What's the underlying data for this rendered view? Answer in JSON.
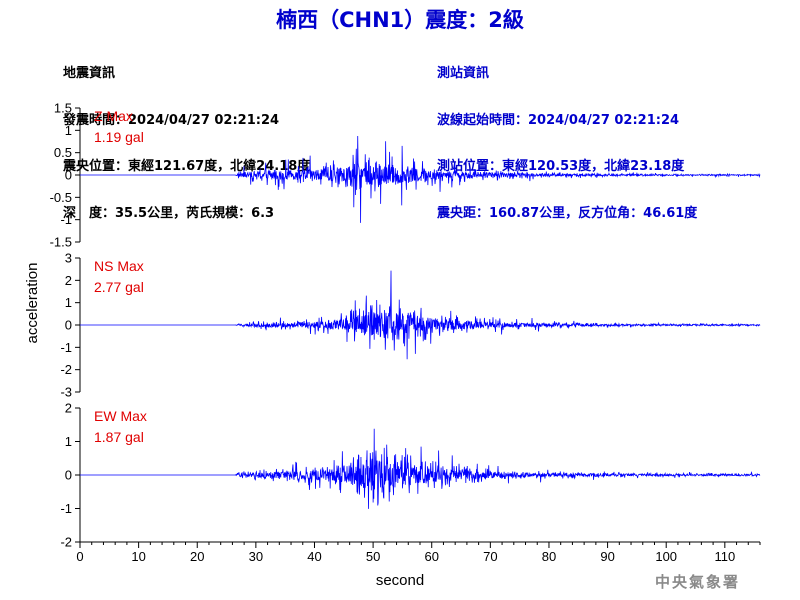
{
  "header": {
    "title": "楠西（CHN1）震度：2級"
  },
  "quake_info": {
    "heading": "地震資訊",
    "origin_time": "發震時間：2024/04/27 02:21:24",
    "epicenter": "震央位置：東經121.67度，北緯24.18度",
    "depth_magnitude": "深　度：35.5公里，芮氏規模：6.3"
  },
  "station_info": {
    "heading": "測站資訊",
    "wave_start": "波線起始時間：2024/04/27 02:21:24",
    "location": "測站位置：東經120.53度，北緯23.18度",
    "distance": "震央距：160.87公里，反方位角：46.61度"
  },
  "watermark": "中央氣象署",
  "colors": {
    "title": "#0000cc",
    "station_info": "#0000cc",
    "trace": "#0000ff",
    "max_label": "#e00000",
    "axis": "#000000"
  },
  "chart_data": {
    "type": "line",
    "xlabel": "second",
    "ylabel": "acceleration",
    "xlim": [
      0,
      116
    ],
    "x_ticks": [
      0,
      10,
      20,
      30,
      40,
      50,
      60,
      70,
      80,
      90,
      100,
      110
    ],
    "panels": [
      {
        "component": "Z",
        "max_label": "Z Max",
        "max_value": "1.19 gal",
        "ylim": [
          -1.5,
          1.5
        ],
        "y_ticks": [
          1.5,
          1,
          0.5,
          0,
          -0.5,
          -1,
          -1.5
        ],
        "y_tick_labels": [
          "1.5",
          "1",
          "0.5",
          "0",
          "-0.5",
          "-1",
          "-1.5"
        ],
        "envelope": [
          [
            0,
            0
          ],
          [
            26.5,
            0
          ],
          [
            27,
            0.15
          ],
          [
            30,
            0.3
          ],
          [
            35,
            0.35
          ],
          [
            40,
            0.45
          ],
          [
            45,
            0.6
          ],
          [
            47.5,
            1.15
          ],
          [
            50,
            0.95
          ],
          [
            53,
            0.85
          ],
          [
            56,
            0.6
          ],
          [
            60,
            0.45
          ],
          [
            65,
            0.3
          ],
          [
            70,
            0.22
          ],
          [
            80,
            0.1
          ],
          [
            90,
            0.07
          ],
          [
            100,
            0.05
          ],
          [
            110,
            0.04
          ],
          [
            116,
            0.04
          ]
        ]
      },
      {
        "component": "NS",
        "max_label": "NS Max",
        "max_value": "2.77 gal",
        "ylim": [
          -3,
          3
        ],
        "y_ticks": [
          3,
          2,
          1,
          0,
          -1,
          -2,
          -3
        ],
        "y_tick_labels": [
          "3",
          "2",
          "1",
          "0",
          "-1",
          "-2",
          "-3"
        ],
        "envelope": [
          [
            0,
            0
          ],
          [
            26.5,
            0
          ],
          [
            27,
            0.1
          ],
          [
            30,
            0.3
          ],
          [
            35,
            0.4
          ],
          [
            40,
            0.55
          ],
          [
            45,
            1.0
          ],
          [
            48,
            1.6
          ],
          [
            50,
            1.9
          ],
          [
            53,
            2.7
          ],
          [
            56,
            1.8
          ],
          [
            60,
            1.1
          ],
          [
            63,
            0.8
          ],
          [
            68,
            0.55
          ],
          [
            75,
            0.35
          ],
          [
            85,
            0.2
          ],
          [
            95,
            0.12
          ],
          [
            110,
            0.08
          ],
          [
            116,
            0.08
          ]
        ]
      },
      {
        "component": "EW",
        "max_label": "EW Max",
        "max_value": "1.87 gal",
        "ylim": [
          -2,
          2
        ],
        "y_ticks": [
          2,
          1,
          0,
          -1,
          -2
        ],
        "y_tick_labels": [
          "2",
          "1",
          "0",
          "-1",
          "-2"
        ],
        "envelope": [
          [
            0,
            0
          ],
          [
            26.5,
            0
          ],
          [
            27,
            0.15
          ],
          [
            30,
            0.3
          ],
          [
            35,
            0.35
          ],
          [
            40,
            0.5
          ],
          [
            45,
            0.9
          ],
          [
            48,
            1.3
          ],
          [
            50,
            1.75
          ],
          [
            53,
            1.4
          ],
          [
            57,
            1.1
          ],
          [
            60,
            0.8
          ],
          [
            65,
            0.55
          ],
          [
            70,
            0.35
          ],
          [
            80,
            0.2
          ],
          [
            90,
            0.15
          ],
          [
            100,
            0.1
          ],
          [
            110,
            0.09
          ],
          [
            116,
            0.09
          ]
        ]
      }
    ]
  }
}
